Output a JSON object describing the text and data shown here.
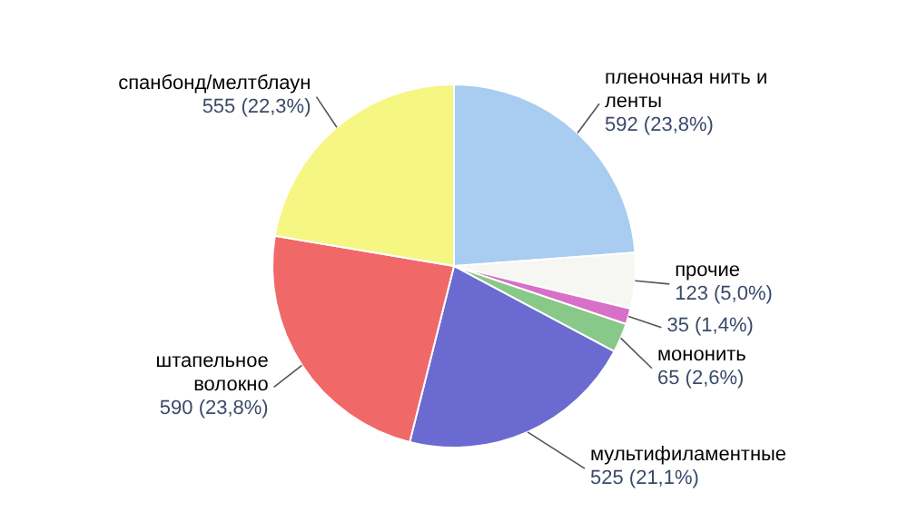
{
  "chart_data": {
    "type": "pie",
    "categories": [
      "пленочная нить и ленты",
      "прочие",
      null,
      "мононить",
      "мультифиламентные",
      "штапельное волокно",
      "спанбонд/мелтблаун"
    ],
    "values": [
      592,
      123,
      35,
      65,
      525,
      590,
      555
    ],
    "value_labels": [
      "592 (23,8%)",
      "123 (5,0%)",
      "35 (1,4%)",
      "65 (2,6%)",
      "525 (21,1%)",
      "590 (23,8%)",
      "555 (22,3%)"
    ],
    "colors": [
      "#a8cdf0",
      "#f6f6f2",
      "#d870c8",
      "#88c888",
      "#6a6ad0",
      "#f06868",
      "#f6f682"
    ],
    "legend": false
  }
}
